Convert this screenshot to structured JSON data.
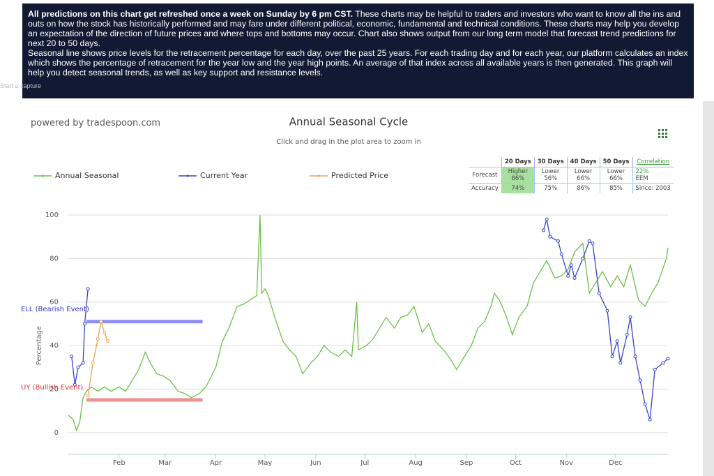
{
  "banner": {
    "lead": "All predictions on this chart get refreshed once a week on Sunday by 6 pm CST.",
    "body": " These charts may be helpful to traders and investors who want to know all the ins and outs on how the stock has historically performed and may fare under different political, economic, fundamental and technical conditions. These charts may help you develop an expectation of the direction of future prices and where tops and bottoms may occur. Chart also shows output from our long term model that forecast trend predictions for next 20 to 50 days.",
    "body2": "Seasonal line shows price levels for the retracement percentage for each day, over the past 25 years. For each trading day and for each year, our platform calculates an index which shows the percentage of retracement for the year low and the year high points. An average of that index across all available years is then generated. This graph will help you detect seasonal trends, as well as key support and resistance levels."
  },
  "capture": "Start a capture",
  "powered": "powered by tradespoon.com",
  "table": {
    "headers": [
      "20 Days",
      "30 Days",
      "40 Days",
      "50 Days"
    ],
    "correlation": "Correlation",
    "forecast_label": "Forecast",
    "forecast": [
      [
        "Higher",
        "86%"
      ],
      [
        "Lower",
        "56%"
      ],
      [
        "Lower",
        "66%"
      ],
      [
        "Lower",
        "66%"
      ]
    ],
    "correlation_value": "22%",
    "symbol": "EEM",
    "accuracy_label": "Accuracy",
    "accuracy": [
      "74%",
      "75%",
      "86%",
      "85%"
    ],
    "since": "Since: 2003"
  },
  "chart_data": {
    "type": "line",
    "title": "Annual Seasonal Cycle",
    "subtitle": "Click and drag in the plot area to zoom in",
    "y_label": "Percentage",
    "xlim": [
      0,
      366
    ],
    "ylim": [
      -10,
      100
    ],
    "yticks": [
      0,
      20,
      40,
      60,
      80,
      100
    ],
    "grid": true,
    "xticks": [
      {
        "value": 31,
        "label": "Feb"
      },
      {
        "value": 59,
        "label": "Mar"
      },
      {
        "value": 90,
        "label": "Apr"
      },
      {
        "value": 120,
        "label": "May"
      },
      {
        "value": 151,
        "label": "Jun"
      },
      {
        "value": 181,
        "label": "Jul"
      },
      {
        "value": 212,
        "label": "Aug"
      },
      {
        "value": 243,
        "label": "Sep"
      },
      {
        "value": 273,
        "label": "Oct"
      },
      {
        "value": 304,
        "label": "Nov"
      },
      {
        "value": 334,
        "label": "Dec"
      }
    ],
    "series": [
      {
        "name": "Annual Seasonal",
        "color": "#6cbf4a",
        "markers": false,
        "x": [
          0,
          3,
          5,
          7,
          9,
          11,
          14,
          18,
          22,
          26,
          31,
          35,
          39,
          43,
          47,
          50,
          54,
          58,
          62,
          67,
          71,
          75,
          80,
          84,
          86,
          90,
          94,
          98,
          103,
          107,
          111,
          115,
          117,
          118,
          120,
          122,
          126,
          131,
          135,
          139,
          143,
          148,
          152,
          156,
          160,
          165,
          169,
          173,
          176,
          177,
          182,
          186,
          190,
          194,
          199,
          203,
          207,
          211,
          216,
          220,
          224,
          229,
          233,
          237,
          241,
          246,
          250,
          254,
          258,
          260,
          263,
          267,
          271,
          275,
          280,
          284,
          288,
          292,
          297,
          301,
          305,
          309,
          314,
          318,
          322,
          326,
          331,
          335,
          339,
          343,
          348,
          352,
          356,
          360,
          365,
          366
        ],
        "values": [
          8,
          6,
          1,
          5,
          16,
          19,
          21,
          19,
          21,
          19,
          21,
          19,
          24,
          29,
          37,
          32,
          27,
          26,
          24,
          19,
          18,
          16,
          18,
          21,
          24,
          30,
          42,
          48,
          58,
          59,
          61,
          63,
          100,
          64,
          66,
          63,
          53,
          42,
          38,
          35,
          27,
          32,
          35,
          40,
          37,
          35,
          38,
          35,
          60,
          38,
          40,
          43,
          48,
          53,
          48,
          53,
          54,
          58,
          46,
          50,
          42,
          38,
          34,
          29,
          34,
          40,
          48,
          51,
          58,
          64,
          61,
          54,
          45,
          53,
          58,
          69,
          74,
          79,
          71,
          72,
          75,
          83,
          87,
          64,
          69,
          74,
          67,
          72,
          67,
          77,
          61,
          58,
          64,
          69,
          80,
          85
        ]
      },
      {
        "name": "Current Year",
        "color": "#3344cc",
        "markers": true,
        "x": [
          2,
          4,
          6,
          9,
          10,
          12,
          200,
          290,
          292,
          294,
          299,
          301,
          305,
          307,
          309,
          314,
          318,
          320,
          324,
          329,
          332,
          335,
          337,
          341,
          343,
          346,
          349,
          352,
          355,
          358,
          363,
          366
        ],
        "values": [
          35,
          22,
          30,
          32,
          50,
          66,
          null,
          93,
          98,
          90,
          88,
          82,
          72,
          77,
          71,
          80,
          88,
          87,
          64,
          56,
          35,
          42,
          32,
          45,
          53,
          35,
          24,
          13,
          6,
          29,
          32,
          34
        ]
      },
      {
        "name": "Predicted Price",
        "color": "#f0a050",
        "markers": true,
        "x": [
          12,
          15,
          18,
          20,
          22,
          24
        ],
        "values": [
          17,
          32,
          43,
          51,
          46,
          42
        ]
      }
    ],
    "bands": [
      {
        "label": "ELL (Bearish Event)",
        "value": 51,
        "x": [
          11,
          82
        ],
        "color": "#7b7bf0",
        "text_color": "#3333cc"
      },
      {
        "label": "UY (Bullish Event)",
        "value": 15,
        "x": [
          11,
          82
        ],
        "color": "#e88080",
        "text_color": "#dd3333"
      }
    ]
  }
}
